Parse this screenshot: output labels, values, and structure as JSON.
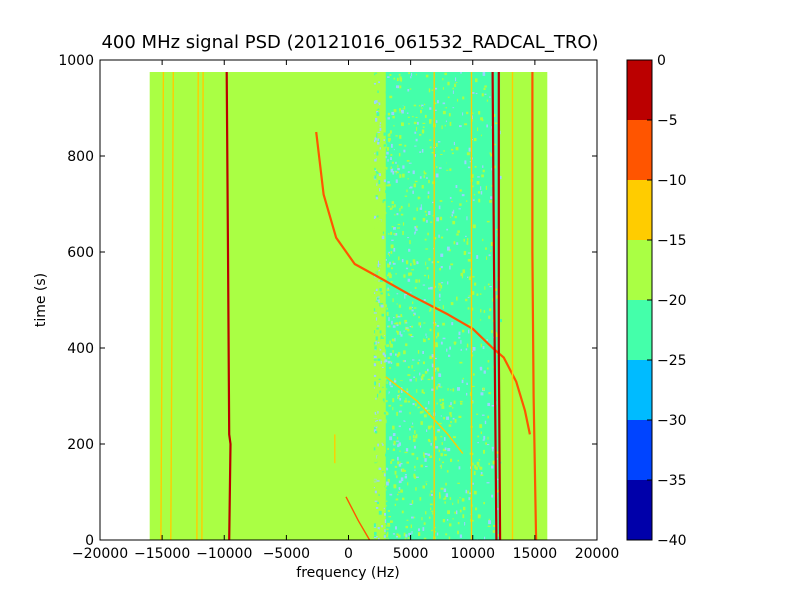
{
  "chart_data": {
    "type": "heatmap",
    "title": "400 MHz signal PSD (20121016_061532_RADCAL_TRO)",
    "xlabel": "frequency (Hz)",
    "ylabel": "time (s)",
    "xlim": [
      -20000,
      20000
    ],
    "ylim": [
      0,
      1000
    ],
    "x_ticks": [
      -20000,
      -15000,
      -10000,
      -5000,
      0,
      5000,
      10000,
      15000,
      20000
    ],
    "y_ticks": [
      0,
      200,
      400,
      600,
      800,
      1000
    ],
    "grid": false,
    "data_extent": {
      "x": [
        -16000,
        16000
      ],
      "y": [
        0,
        975
      ]
    },
    "background_level": -17.5,
    "noisy_region": {
      "x": [
        3000,
        12200
      ],
      "level": -22.5
    },
    "colorbar": {
      "levels": [
        -40,
        -35,
        -30,
        -25,
        -20,
        -15,
        -10,
        -5,
        0
      ],
      "tick_labels": [
        "0",
        "−5",
        "−10",
        "−15",
        "−20",
        "−25",
        "−30",
        "−35",
        "−40"
      ],
      "tick_values": [
        0,
        -5,
        -10,
        -15,
        -20,
        -25,
        -30,
        -35,
        -40
      ],
      "colors": [
        "#0000aa",
        "#0044ff",
        "#00bbff",
        "#44ffaa",
        "#aaff44",
        "#ffcc00",
        "#ff5500",
        "#bb0000"
      ]
    },
    "traces": [
      {
        "id": "vline-a",
        "points": [
          [
            -15100,
            0
          ],
          [
            -14900,
            975
          ]
        ],
        "level": -12
      },
      {
        "id": "vline-b",
        "points": [
          [
            -14300,
            0
          ],
          [
            -14100,
            975
          ]
        ],
        "level": -12
      },
      {
        "id": "vline-c",
        "points": [
          [
            -12200,
            0
          ],
          [
            -12100,
            975
          ]
        ],
        "level": -12
      },
      {
        "id": "vline-d",
        "points": [
          [
            -11800,
            0
          ],
          [
            -11700,
            975
          ]
        ],
        "level": -12
      },
      {
        "id": "vline-e",
        "points": [
          [
            -9600,
            0
          ],
          [
            -9500,
            200
          ],
          [
            -9600,
            220
          ],
          [
            -9700,
            600
          ],
          [
            -9800,
            975
          ]
        ],
        "level": -4
      },
      {
        "id": "chirp-main",
        "points": [
          [
            -2600,
            850
          ],
          [
            -2000,
            720
          ],
          [
            -1000,
            630
          ],
          [
            500,
            575
          ],
          [
            2600,
            545
          ],
          [
            5000,
            510
          ],
          [
            8000,
            470
          ],
          [
            10000,
            440
          ],
          [
            11600,
            400
          ],
          [
            12500,
            380
          ],
          [
            13500,
            330
          ],
          [
            14200,
            270
          ],
          [
            14600,
            220
          ]
        ],
        "level": -6
      },
      {
        "id": "chirp-low",
        "points": [
          [
            -200,
            90
          ],
          [
            800,
            40
          ],
          [
            1700,
            0
          ]
        ],
        "level": -8
      },
      {
        "id": "chirp-faint",
        "points": [
          [
            3000,
            340
          ],
          [
            5500,
            290
          ],
          [
            8000,
            220
          ],
          [
            9200,
            180
          ]
        ],
        "level": -12
      },
      {
        "id": "vline-f",
        "points": [
          [
            11600,
            975
          ],
          [
            11700,
            600
          ],
          [
            11800,
            300
          ],
          [
            11900,
            0
          ]
        ],
        "level": -3
      },
      {
        "id": "vline-g",
        "points": [
          [
            12100,
            975
          ],
          [
            12100,
            400
          ],
          [
            12200,
            0
          ]
        ],
        "level": -4
      },
      {
        "id": "vline-h",
        "points": [
          [
            14800,
            975
          ],
          [
            14800,
            600
          ],
          [
            14900,
            300
          ],
          [
            15100,
            0
          ]
        ],
        "level": -6
      },
      {
        "id": "vline-i",
        "points": [
          [
            9900,
            975
          ],
          [
            9900,
            0
          ]
        ],
        "level": -14
      },
      {
        "id": "vline-j",
        "points": [
          [
            6900,
            975
          ],
          [
            6900,
            0
          ]
        ],
        "level": -14
      },
      {
        "id": "vline-k",
        "points": [
          [
            13200,
            975
          ],
          [
            13200,
            0
          ]
        ],
        "level": -14
      },
      {
        "id": "short-dash",
        "points": [
          [
            -1100,
            220
          ],
          [
            -1100,
            160
          ]
        ],
        "level": -12
      }
    ]
  }
}
